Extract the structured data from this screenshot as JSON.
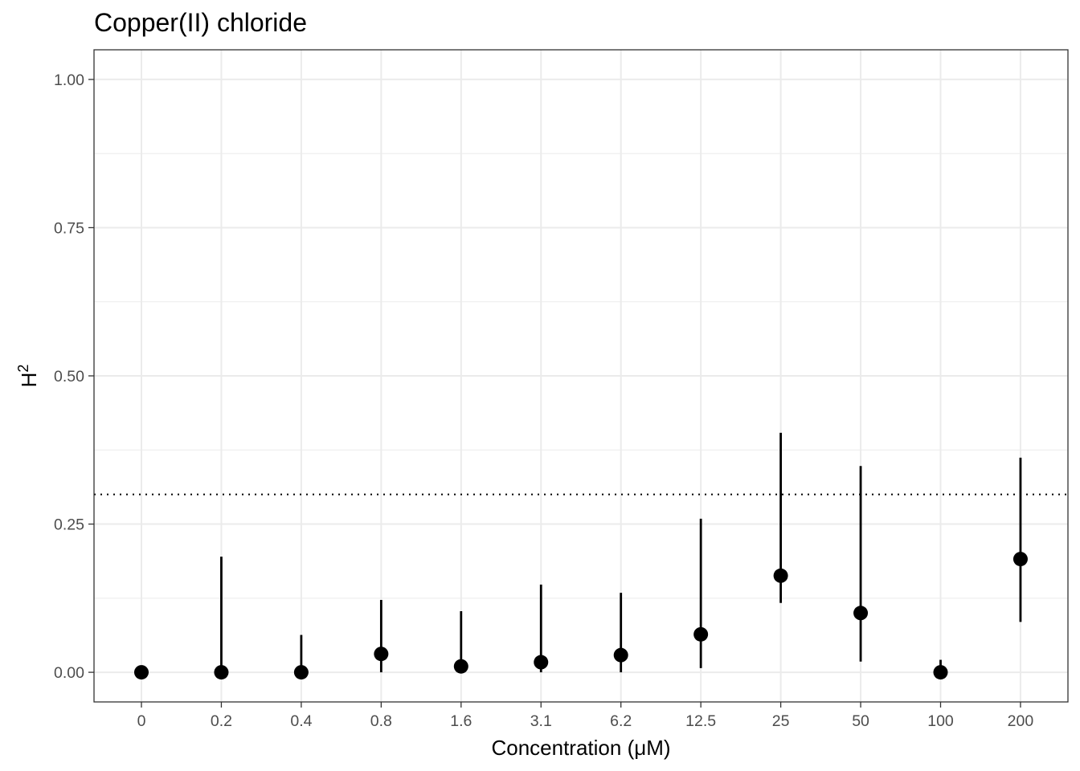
{
  "chart_data": {
    "type": "scatter",
    "title": "Copper(II) chloride",
    "xlabel": "Concentration (μM)",
    "ylabel": "H",
    "ylabel_superscript": "2",
    "categories": [
      "0",
      "0.2",
      "0.4",
      "0.8",
      "1.6",
      "3.1",
      "6.2",
      "12.5",
      "25",
      "50",
      "100",
      "200"
    ],
    "values": [
      0.0,
      0.0,
      0.0,
      0.031,
      0.01,
      0.017,
      0.029,
      0.064,
      0.163,
      0.1,
      0.0,
      0.191
    ],
    "lower": [
      0.0,
      0.0,
      0.0,
      0.0,
      0.0,
      0.0,
      0.0,
      0.007,
      0.117,
      0.018,
      0.0,
      0.085
    ],
    "upper": [
      0.0,
      0.195,
      0.063,
      0.122,
      0.103,
      0.148,
      0.134,
      0.259,
      0.404,
      0.348,
      0.021,
      0.362
    ],
    "ylim": [
      -0.05,
      1.05
    ],
    "yticks": [
      0.0,
      0.25,
      0.5,
      0.75,
      1.0
    ],
    "ytick_labels": [
      "0.00",
      "0.25",
      "0.50",
      "0.75",
      "1.00"
    ],
    "reference_line": {
      "y": 0.3,
      "style": "dotted"
    },
    "grid": true,
    "legend": "none",
    "colors": {
      "point": "#000000",
      "grid": "#ebebeb",
      "border": "#333333"
    }
  }
}
